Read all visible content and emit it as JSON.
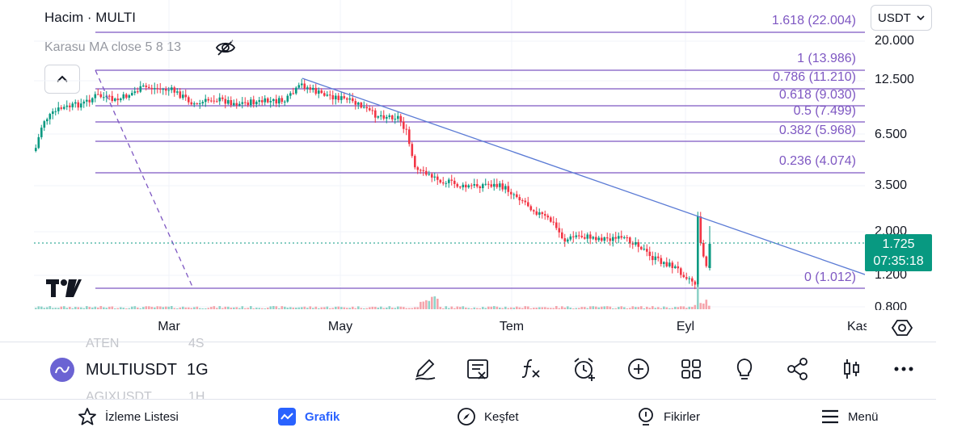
{
  "header": {
    "title": "Hacim · MULTI",
    "indicator": "Karasu MA close 5 8 13",
    "currency": "USDT"
  },
  "chart_data": {
    "type": "candlestick",
    "price_axis": [
      "20.000",
      "12.500",
      "6.500",
      "3.500",
      "2.000",
      "1.200",
      "0.800"
    ],
    "time_axis": [
      "Mar",
      "May",
      "Tem",
      "Eyl",
      "Kas"
    ],
    "fib_levels": [
      {
        "ratio": "1.618",
        "price": "22.004",
        "label": "1.618 (22.004)"
      },
      {
        "ratio": "1",
        "price": "13.986",
        "label": "1 (13.986)"
      },
      {
        "ratio": "0.786",
        "price": "11.210",
        "label": "0.786 (11.210)"
      },
      {
        "ratio": "0.618",
        "price": "9.030",
        "label": "0.618 (9.030)"
      },
      {
        "ratio": "0.5",
        "price": "7.499",
        "label": "0.5 (7.499)"
      },
      {
        "ratio": "0.382",
        "price": "5.968",
        "label": "0.382 (5.968)"
      },
      {
        "ratio": "0.236",
        "price": "4.074",
        "label": "0.236 (4.074)"
      },
      {
        "ratio": "0",
        "price": "1.012",
        "label": "0 (1.012)"
      }
    ],
    "last_price": "1.725",
    "countdown": "07:35:18",
    "trendline": "descending",
    "colors": {
      "up": "#089981",
      "down": "#f23645",
      "fib": "#7e57c2",
      "trend": "#5b7bd5"
    }
  },
  "symbol_bar": {
    "ghost_prev": "ATEN",
    "ghost_prev_tf": "4S",
    "symbol": "MULTIUSDT",
    "timeframe": "1G",
    "ghost_next": "AGIXUSDT",
    "ghost_next_tf": "1H"
  },
  "toolbar": [
    "pencil-icon",
    "note-icon",
    "function-icon",
    "alarm-add-icon",
    "plus-circle-icon",
    "grid-icon",
    "lightbulb-icon",
    "share-icon",
    "candles-icon",
    "more-icon"
  ],
  "bottom_nav": {
    "watchlist": "İzleme Listesi",
    "chart": "Grafik",
    "explore": "Keşfet",
    "ideas": "Fikirler",
    "menu": "Menü"
  }
}
